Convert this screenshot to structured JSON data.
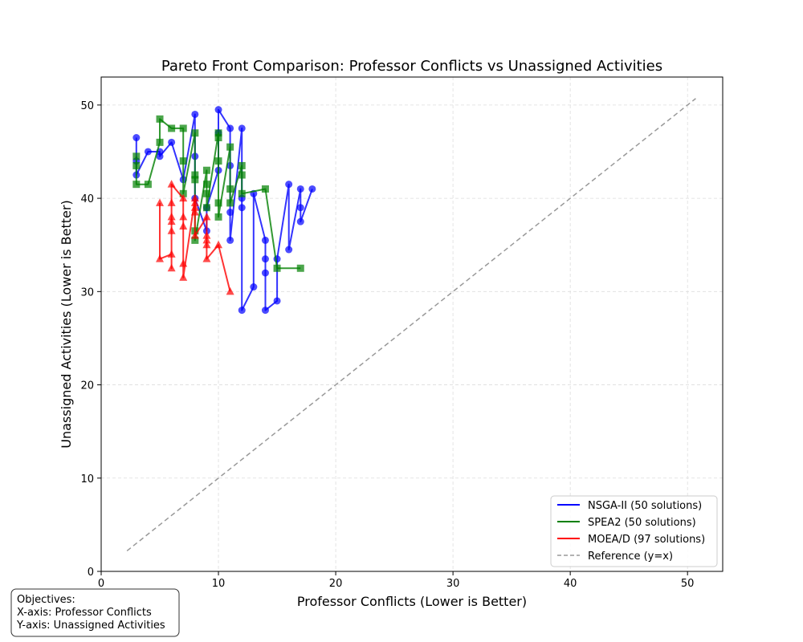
{
  "chart_data": {
    "type": "line",
    "title": "Pareto Front Comparison: Professor Conflicts vs Unassigned Activities",
    "xlabel": "Professor Conflicts (Lower is Better)",
    "ylabel": "Unassigned Activities (Lower is Better)",
    "xlim": [
      0,
      53
    ],
    "ylim": [
      0,
      53
    ],
    "xticks": [
      0,
      10,
      20,
      30,
      40,
      50
    ],
    "yticks": [
      0,
      10,
      20,
      30,
      40,
      50
    ],
    "grid": true,
    "legend_position": "lower-right",
    "series": [
      {
        "name": "NSGA-II (50 solutions)",
        "color": "#0000ff",
        "marker": "circle",
        "points": [
          [
            3,
            46.5
          ],
          [
            3,
            44
          ],
          [
            3,
            42.5
          ],
          [
            4,
            45
          ],
          [
            5,
            45
          ],
          [
            5,
            44.5
          ],
          [
            6,
            46
          ],
          [
            7,
            42
          ],
          [
            8,
            49
          ],
          [
            8,
            44.5
          ],
          [
            8,
            40
          ],
          [
            9,
            36.5
          ],
          [
            9,
            39
          ],
          [
            10,
            43
          ],
          [
            10,
            47
          ],
          [
            10,
            49.5
          ],
          [
            11,
            47.5
          ],
          [
            11,
            43.5
          ],
          [
            11,
            38.5
          ],
          [
            11,
            35.5
          ],
          [
            12,
            47.5
          ],
          [
            12,
            40
          ],
          [
            12,
            39
          ],
          [
            12,
            28
          ],
          [
            13,
            30.5
          ],
          [
            13,
            40.5
          ],
          [
            14,
            35.5
          ],
          [
            14,
            33.5
          ],
          [
            14,
            32
          ],
          [
            14,
            28
          ],
          [
            15,
            29
          ],
          [
            15,
            33.5
          ],
          [
            16,
            41.5
          ],
          [
            16,
            34.5
          ],
          [
            17,
            41
          ],
          [
            17,
            39
          ],
          [
            17,
            37.5
          ],
          [
            18,
            41
          ]
        ]
      },
      {
        "name": "SPEA2 (50 solutions)",
        "color": "#008000",
        "marker": "square",
        "points": [
          [
            3,
            44.5
          ],
          [
            3,
            43.5
          ],
          [
            3,
            41.5
          ],
          [
            4,
            41.5
          ],
          [
            5,
            46
          ],
          [
            5,
            48.5
          ],
          [
            6,
            47.5
          ],
          [
            7,
            47.5
          ],
          [
            7,
            44
          ],
          [
            7,
            40.5
          ],
          [
            8,
            47
          ],
          [
            8,
            42.5
          ],
          [
            8,
            42
          ],
          [
            8,
            36.5
          ],
          [
            8,
            35.5
          ],
          [
            9,
            43
          ],
          [
            9,
            41.5
          ],
          [
            9,
            40.5
          ],
          [
            9,
            39
          ],
          [
            10,
            47
          ],
          [
            10,
            46.5
          ],
          [
            10,
            44
          ],
          [
            10,
            39.5
          ],
          [
            10,
            38
          ],
          [
            11,
            45.5
          ],
          [
            11,
            41
          ],
          [
            11,
            39.5
          ],
          [
            12,
            43.5
          ],
          [
            12,
            42.5
          ],
          [
            12,
            40.5
          ],
          [
            14,
            41
          ],
          [
            15,
            32.5
          ],
          [
            17,
            32.5
          ]
        ]
      },
      {
        "name": "MOEA/D (97 solutions)",
        "color": "#ff0000",
        "marker": "triangle",
        "points": [
          [
            5,
            39.5
          ],
          [
            5,
            33.5
          ],
          [
            6,
            34
          ],
          [
            6,
            32.5
          ],
          [
            6,
            36.5
          ],
          [
            6,
            37.5
          ],
          [
            6,
            38
          ],
          [
            6,
            39.5
          ],
          [
            6,
            41.5
          ],
          [
            7,
            40
          ],
          [
            7,
            38
          ],
          [
            7,
            37
          ],
          [
            7,
            33
          ],
          [
            7,
            31.5
          ],
          [
            8,
            40
          ],
          [
            8,
            39.5
          ],
          [
            8,
            39
          ],
          [
            8,
            38.5
          ],
          [
            8,
            36
          ],
          [
            9,
            38
          ],
          [
            9,
            36
          ],
          [
            9,
            35.5
          ],
          [
            9,
            35
          ],
          [
            9,
            33.5
          ],
          [
            10,
            35
          ],
          [
            11,
            30
          ]
        ]
      }
    ],
    "reference_line": {
      "name": "Reference (y=x)",
      "color": "#999999",
      "x": [
        2.2,
        50.7
      ],
      "y": [
        2.2,
        50.7
      ]
    }
  },
  "objectives_box": {
    "line1": "Objectives:",
    "line2": "X-axis: Professor Conflicts",
    "line3": "Y-axis: Unassigned Activities"
  }
}
